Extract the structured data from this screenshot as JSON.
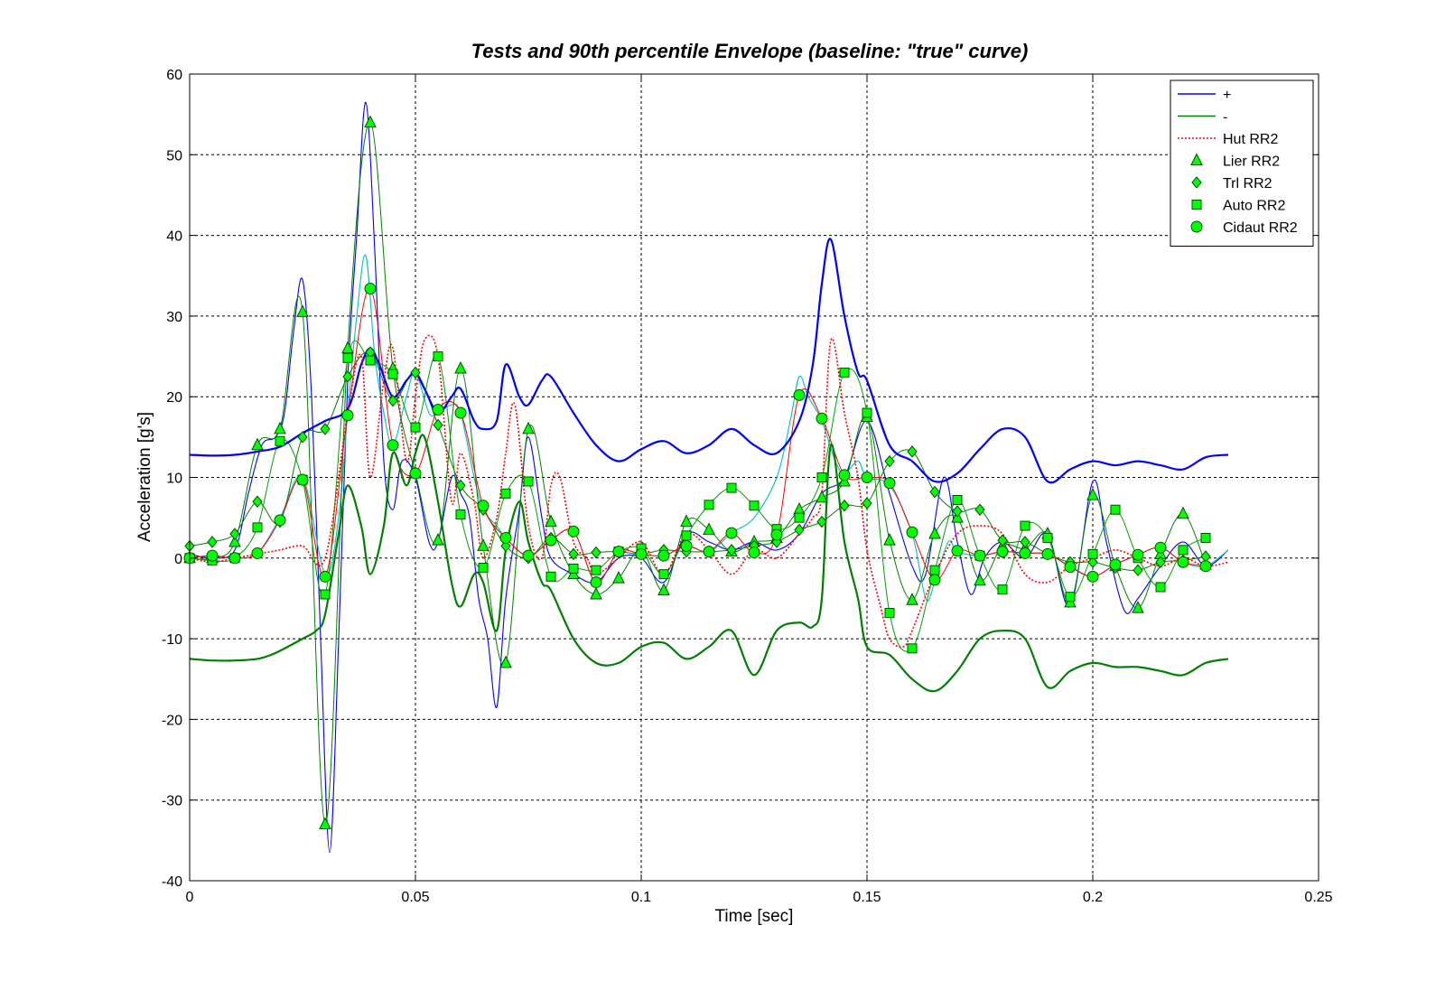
{
  "chart_data": {
    "type": "line",
    "title": "Tests and 90th percentile Envelope (baseline: \"true\" curve)",
    "xlabel": "Time [sec]",
    "ylabel": "Acceleration [g's]",
    "xlim": [
      0,
      0.25
    ],
    "ylim": [
      -40,
      60
    ],
    "x_ticks": [
      0,
      0.05,
      0.1,
      0.15,
      0.2,
      0.25
    ],
    "x_tick_labels": [
      "0",
      "0.05",
      "0.1",
      "0.15",
      "0.2",
      "0.25"
    ],
    "y_ticks": [
      -40,
      -30,
      -20,
      -10,
      0,
      10,
      20,
      30,
      40,
      50,
      60
    ],
    "y_tick_labels": [
      "-40",
      "-30",
      "-20",
      "-10",
      "0",
      "10",
      "20",
      "30",
      "40",
      "50",
      "60"
    ],
    "grid": true,
    "legend_position": "top-right",
    "colors": {
      "upper": "#0000ff",
      "lower": "#007f00",
      "hut": "#ff0000",
      "marker_fill": "#00ff00",
      "marker_edge": "#005000"
    },
    "series": [
      {
        "name": "+",
        "style": "solid",
        "color": "#0000ff",
        "x": [
          0,
          0.005,
          0.01,
          0.015,
          0.02,
          0.025,
          0.03,
          0.035,
          0.038,
          0.04,
          0.042,
          0.045,
          0.048,
          0.05,
          0.052,
          0.055,
          0.058,
          0.06,
          0.063,
          0.065,
          0.068,
          0.07,
          0.073,
          0.075,
          0.078,
          0.08,
          0.085,
          0.09,
          0.095,
          0.1,
          0.105,
          0.11,
          0.115,
          0.12,
          0.125,
          0.13,
          0.135,
          0.138,
          0.14,
          0.142,
          0.145,
          0.148,
          0.15,
          0.155,
          0.16,
          0.165,
          0.17,
          0.175,
          0.18,
          0.185,
          0.19,
          0.195,
          0.2,
          0.205,
          0.21,
          0.215,
          0.22,
          0.225,
          0.23
        ],
        "y": [
          12.8,
          12.7,
          12.8,
          13.2,
          13.8,
          15.5,
          17,
          18.5,
          24,
          26,
          24,
          20,
          22,
          23,
          21,
          18,
          20,
          21,
          17,
          16,
          17,
          24,
          20,
          19,
          22,
          22.5,
          18,
          14,
          12,
          13.5,
          14.5,
          13,
          14,
          16,
          14,
          13,
          17,
          24,
          34,
          39.5,
          30,
          23,
          22,
          14,
          12,
          9.5,
          10.5,
          13.5,
          16,
          15,
          9.5,
          11,
          12,
          11.5,
          12,
          11.5,
          11,
          12.5,
          12.8
        ]
      },
      {
        "name": "-",
        "style": "solid",
        "color": "#007f00",
        "x": [
          0,
          0.005,
          0.01,
          0.015,
          0.018,
          0.02,
          0.025,
          0.028,
          0.03,
          0.033,
          0.035,
          0.038,
          0.04,
          0.043,
          0.045,
          0.048,
          0.05,
          0.052,
          0.055,
          0.058,
          0.06,
          0.063,
          0.065,
          0.068,
          0.07,
          0.073,
          0.075,
          0.078,
          0.08,
          0.085,
          0.09,
          0.095,
          0.1,
          0.105,
          0.11,
          0.115,
          0.12,
          0.125,
          0.13,
          0.135,
          0.138,
          0.14,
          0.142,
          0.145,
          0.148,
          0.15,
          0.155,
          0.16,
          0.165,
          0.17,
          0.175,
          0.18,
          0.185,
          0.19,
          0.195,
          0.2,
          0.205,
          0.21,
          0.215,
          0.22,
          0.225,
          0.23
        ],
        "y": [
          -12.5,
          -12.7,
          -12.7,
          -12.5,
          -12,
          -11.5,
          -10,
          -9,
          -7,
          3,
          9,
          4,
          -2,
          4,
          13,
          9,
          13,
          15,
          7,
          -3,
          -6,
          -2,
          -3,
          -9,
          1,
          7,
          2,
          -3,
          -4,
          -10,
          -13,
          -13,
          -11,
          -10.5,
          -12.5,
          -11,
          -9,
          -14.5,
          -9,
          -8,
          -8.5,
          -5,
          14,
          2,
          -5,
          -11,
          -12,
          -15,
          -16.5,
          -14,
          -10,
          -9,
          -10,
          -16,
          -14,
          -13,
          -13.5,
          -13.5,
          -14,
          -14.5,
          -13,
          -12.5
        ]
      },
      {
        "name": "Hut RR2",
        "style": "dotted",
        "color": "#ff0000",
        "x": [
          0,
          0.005,
          0.01,
          0.015,
          0.02,
          0.025,
          0.03,
          0.035,
          0.038,
          0.04,
          0.043,
          0.045,
          0.048,
          0.05,
          0.052,
          0.055,
          0.058,
          0.06,
          0.063,
          0.065,
          0.068,
          0.07,
          0.072,
          0.075,
          0.078,
          0.08,
          0.082,
          0.085,
          0.088,
          0.09,
          0.095,
          0.1,
          0.105,
          0.11,
          0.115,
          0.12,
          0.125,
          0.13,
          0.135,
          0.138,
          0.14,
          0.142,
          0.145,
          0.148,
          0.15,
          0.153,
          0.155,
          0.158,
          0.16,
          0.165,
          0.17,
          0.175,
          0.18,
          0.185,
          0.19,
          0.195,
          0.2,
          0.205,
          0.21,
          0.215,
          0.22,
          0.225,
          0.23
        ],
        "y": [
          0,
          -0.5,
          0,
          0.5,
          1,
          1.5,
          0,
          18,
          25,
          10,
          22,
          26,
          12,
          20,
          27,
          25,
          7,
          13,
          7,
          0,
          5,
          13,
          19,
          4,
          0,
          9,
          10,
          2,
          0,
          -2,
          0,
          2,
          -2,
          3,
          1,
          -2,
          1,
          0,
          3,
          5,
          8,
          27,
          18,
          10,
          1,
          -6,
          -10,
          -11,
          -9,
          -2,
          3,
          4,
          3,
          -2,
          -3,
          -1,
          0,
          1,
          0,
          -1,
          0,
          -1,
          -0.5
        ]
      },
      {
        "name": "Lier RR2",
        "marker": "triangle",
        "x": [
          0,
          0.005,
          0.01,
          0.015,
          0.02,
          0.025,
          0.03,
          0.035,
          0.04,
          0.045,
          0.05,
          0.055,
          0.06,
          0.065,
          0.07,
          0.075,
          0.08,
          0.085,
          0.09,
          0.095,
          0.1,
          0.105,
          0.11,
          0.115,
          0.12,
          0.125,
          0.13,
          0.135,
          0.14,
          0.145,
          0.15,
          0.155,
          0.16,
          0.165,
          0.17,
          0.175,
          0.18,
          0.185,
          0.19,
          0.195,
          0.2,
          0.205,
          0.21,
          0.215,
          0.22,
          0.225
        ],
        "y": [
          0,
          0,
          2,
          14,
          16,
          30.5,
          -33,
          26,
          54,
          23.5,
          10.5,
          2.2,
          23.5,
          1.5,
          -13,
          16,
          4.5,
          -2,
          -4.5,
          -2.5,
          1,
          -4,
          4.5,
          3.5,
          0.8,
          2,
          2.5,
          6,
          7.5,
          9.5,
          17.5,
          2.2,
          -5.2,
          3,
          5,
          -2.8,
          1.5,
          1.2,
          3,
          -5.5,
          7.8,
          -1,
          -6.2,
          0.5,
          5.5,
          -0.8
        ]
      },
      {
        "name": "Trl RR2",
        "marker": "diamond",
        "x": [
          0,
          0.005,
          0.01,
          0.015,
          0.02,
          0.025,
          0.03,
          0.035,
          0.04,
          0.045,
          0.05,
          0.055,
          0.06,
          0.065,
          0.07,
          0.075,
          0.08,
          0.085,
          0.09,
          0.095,
          0.1,
          0.105,
          0.11,
          0.115,
          0.12,
          0.125,
          0.13,
          0.135,
          0.14,
          0.145,
          0.15,
          0.155,
          0.16,
          0.165,
          0.17,
          0.175,
          0.18,
          0.185,
          0.19,
          0.195,
          0.2,
          0.205,
          0.21,
          0.215,
          0.22,
          0.225
        ],
        "y": [
          1.5,
          2,
          3,
          7,
          4.5,
          15,
          16,
          22.5,
          25.5,
          19.5,
          23,
          16.5,
          9,
          6,
          1.5,
          0,
          2.5,
          0.5,
          0.7,
          0.8,
          0.5,
          1,
          0.8,
          0.8,
          1,
          1.5,
          2,
          3.5,
          4.5,
          6.5,
          6.8,
          12,
          13.2,
          8.2,
          5.8,
          6,
          2.2,
          2,
          0.5,
          -0.5,
          -0.5,
          -1.2,
          -1.5,
          -0.5,
          -0.3,
          0.2
        ]
      },
      {
        "name": "Auto RR2",
        "marker": "square",
        "x": [
          0,
          0.005,
          0.01,
          0.015,
          0.02,
          0.025,
          0.03,
          0.035,
          0.04,
          0.045,
          0.05,
          0.055,
          0.06,
          0.065,
          0.07,
          0.075,
          0.08,
          0.085,
          0.09,
          0.095,
          0.1,
          0.105,
          0.11,
          0.115,
          0.12,
          0.125,
          0.13,
          0.135,
          0.14,
          0.145,
          0.15,
          0.155,
          0.16,
          0.165,
          0.17,
          0.175,
          0.18,
          0.185,
          0.19,
          0.195,
          0.2,
          0.205,
          0.21,
          0.215,
          0.22,
          0.225
        ],
        "y": [
          0,
          -0.3,
          0,
          3.8,
          14.5,
          9.7,
          -4.5,
          24.8,
          24.5,
          22.8,
          16.2,
          25,
          5.4,
          -1.2,
          8,
          9.5,
          -2.3,
          -1.3,
          -1.5,
          0.8,
          1.2,
          -2,
          2.8,
          6.6,
          8.7,
          6.5,
          3.6,
          5,
          10,
          23,
          18,
          -6.8,
          -11.2,
          -1.5,
          7.2,
          0.3,
          -3.9,
          4,
          2.5,
          -4.8,
          0.5,
          6,
          0,
          -3.6,
          1,
          2.5
        ]
      },
      {
        "name": "Cidaut RR2",
        "marker": "circle",
        "x": [
          0,
          0.005,
          0.01,
          0.015,
          0.02,
          0.025,
          0.03,
          0.035,
          0.04,
          0.045,
          0.05,
          0.055,
          0.06,
          0.065,
          0.07,
          0.075,
          0.08,
          0.085,
          0.09,
          0.095,
          0.1,
          0.105,
          0.11,
          0.115,
          0.12,
          0.125,
          0.13,
          0.135,
          0.14,
          0.145,
          0.15,
          0.155,
          0.16,
          0.165,
          0.17,
          0.175,
          0.18,
          0.185,
          0.19,
          0.195,
          0.2,
          0.205,
          0.21,
          0.215,
          0.22,
          0.225
        ],
        "y": [
          0,
          0.3,
          0,
          0.6,
          4.7,
          9.7,
          -2.3,
          17.7,
          33.4,
          14,
          10.5,
          18.4,
          18,
          6.5,
          2.5,
          0.3,
          2.2,
          3.3,
          -3,
          0.8,
          0.5,
          0.3,
          1.5,
          0.8,
          3.1,
          0.7,
          2.9,
          20.2,
          17.3,
          10.3,
          10,
          9.3,
          3.2,
          -2.7,
          0.9,
          0.3,
          0.8,
          0.6,
          0.5,
          -1.1,
          -2.3,
          -0.8,
          0.4,
          1.3,
          -0.5,
          -1
        ]
      }
    ],
    "unlabeled_lines": [
      {
        "color": "#0000ff",
        "x": [
          0,
          0.005,
          0.01,
          0.013,
          0.016,
          0.019,
          0.021,
          0.023,
          0.025,
          0.027,
          0.029,
          0.031,
          0.033,
          0.035,
          0.037,
          0.039,
          0.041,
          0.043,
          0.045,
          0.047,
          0.05,
          0.053,
          0.055,
          0.058,
          0.06,
          0.062,
          0.064,
          0.066,
          0.068,
          0.07,
          0.073,
          0.075,
          0.078,
          0.08,
          0.085,
          0.09,
          0.095,
          0.1,
          0.105,
          0.11,
          0.115,
          0.12,
          0.125,
          0.13,
          0.135,
          0.14,
          0.145,
          0.15,
          0.155,
          0.16,
          0.163,
          0.167,
          0.17,
          0.173,
          0.176,
          0.18,
          0.185,
          0.19,
          0.195,
          0.2,
          0.203,
          0.207,
          0.21,
          0.215,
          0.22,
          0.225,
          0.23
        ],
        "y": [
          0.5,
          0,
          1,
          8,
          14,
          15,
          18,
          28,
          34.5,
          20,
          -10,
          -36.5,
          -10,
          22,
          40,
          56.5,
          38,
          12,
          6,
          12,
          10,
          2,
          2,
          10,
          8,
          5,
          -5,
          -10,
          -18.5,
          -5,
          6,
          15,
          5,
          0,
          -2,
          -3,
          0,
          0,
          -3,
          3,
          2,
          1,
          2,
          1,
          3,
          8,
          10,
          17,
          8,
          -1,
          -2,
          10,
          2,
          -4.5,
          0,
          2,
          0,
          3,
          -6,
          9.5,
          2,
          -6.5,
          -5,
          -1,
          2,
          -1,
          1
        ]
      },
      {
        "color": "#00c0c0",
        "x": [
          0,
          0.005,
          0.01,
          0.015,
          0.02,
          0.025,
          0.03,
          0.033,
          0.035,
          0.037,
          0.039,
          0.041,
          0.043,
          0.045,
          0.048,
          0.05,
          0.053,
          0.055,
          0.058,
          0.06,
          0.063,
          0.065,
          0.068,
          0.07,
          0.075,
          0.08,
          0.085,
          0.09,
          0.095,
          0.1,
          0.105,
          0.11,
          0.115,
          0.12,
          0.125,
          0.13,
          0.133,
          0.135,
          0.137,
          0.14,
          0.143,
          0.145,
          0.148,
          0.15,
          0.155,
          0.16,
          0.163,
          0.165,
          0.168,
          0.17,
          0.175,
          0.18,
          0.185,
          0.19,
          0.195,
          0.2,
          0.205,
          0.21,
          0.215,
          0.22,
          0.225,
          0.23
        ],
        "y": [
          0,
          0.3,
          0,
          0.6,
          5,
          10,
          -2,
          5,
          18,
          30,
          37.5,
          25,
          18,
          14,
          20,
          23,
          18,
          18,
          19,
          18,
          10,
          6,
          4,
          2.5,
          0.3,
          2.2,
          3.3,
          -3,
          0.8,
          0.5,
          0.3,
          1.5,
          0.8,
          3.1,
          5,
          10,
          17,
          22.5,
          20,
          17,
          12,
          10.5,
          12,
          10,
          9,
          3,
          -5,
          -3,
          2,
          0.8,
          0.3,
          0.8,
          0.6,
          0.5,
          -1,
          -2.3,
          -0.8,
          0.4,
          1.3,
          -0.5,
          -1,
          1
        ]
      }
    ],
    "legend": [
      "+",
      "-",
      "Hut RR2",
      "Lier RR2",
      "Trl RR2",
      "Auto RR2",
      "Cidaut RR2"
    ]
  }
}
